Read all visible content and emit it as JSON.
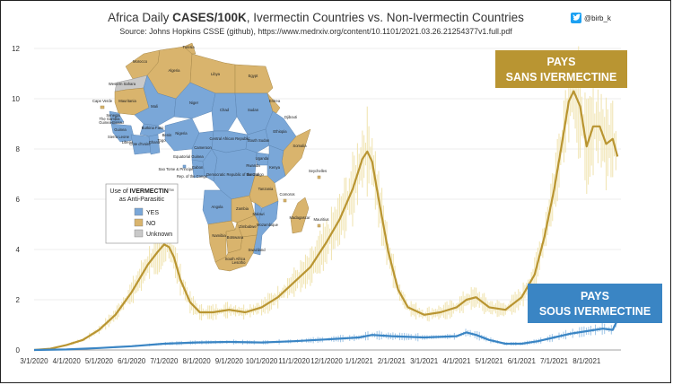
{
  "colors": {
    "ivermectin": "#3a85c4",
    "no_ivermectin": "#b99532",
    "no_ivermectin_raw": "#f1e5b4",
    "ivermectin_raw": "#9ec4e6",
    "map_yes": "#7aa7d8",
    "map_no": "#d9b46d",
    "map_unknown": "#c9c9c9",
    "twitter": "#1da1f2"
  },
  "twitter": {
    "icon": "twitter-bird-icon",
    "handle": "@birb_k"
  },
  "chart_data": {
    "type": "line",
    "title_prefix": "Africa Daily ",
    "title_bold": "CASES/100K",
    "title_suffix": ", Ivermectin Countries vs. Non-Ivermectin Countries",
    "subtitle": "Source: Johns Hopkins CSSE (github), https://www.medrxiv.org/content/10.1101/2021.03.26.21254377v1.full.pdf",
    "ylim": [
      0,
      12
    ],
    "yticks": [
      0,
      2,
      4,
      6,
      8,
      10,
      12
    ],
    "x_months": [
      "3/1/2020",
      "4/1/2020",
      "5/1/2020",
      "6/1/2020",
      "7/1/2020",
      "8/1/2020",
      "9/1/2020",
      "10/1/2020",
      "11/1/2020",
      "12/1/2020",
      "1/1/2021",
      "2/1/2021",
      "3/1/2021",
      "4/1/2021",
      "5/1/2021",
      "6/1/2021",
      "7/1/2021",
      "8/1/2021"
    ],
    "x_range_months": [
      0,
      18
    ],
    "series": [
      {
        "name": "PAYS SANS IVERMECTINE",
        "x": [
          0,
          0.5,
          1,
          1.5,
          2,
          2.5,
          3,
          3.5,
          3.8,
          4.0,
          4.15,
          4.3,
          4.5,
          4.8,
          5.1,
          5.5,
          6,
          6.5,
          7,
          7.5,
          8,
          8.5,
          9,
          9.4,
          9.8,
          10.1,
          10.25,
          10.4,
          10.6,
          10.9,
          11.2,
          11.5,
          12,
          12.5,
          13,
          13.3,
          13.6,
          14,
          14.5,
          15,
          15.4,
          15.7,
          16,
          16.25,
          16.45,
          16.6,
          16.8,
          17,
          17.2,
          17.4,
          17.6,
          17.8,
          17.95
        ],
        "values": [
          0,
          0.05,
          0.2,
          0.4,
          0.8,
          1.4,
          2.3,
          3.4,
          3.9,
          4.2,
          4.1,
          3.7,
          2.8,
          1.9,
          1.5,
          1.5,
          1.6,
          1.5,
          1.7,
          2.1,
          2.7,
          3.3,
          4.3,
          5.2,
          6.4,
          7.6,
          7.9,
          7.5,
          6.0,
          3.9,
          2.4,
          1.7,
          1.4,
          1.5,
          1.7,
          2.0,
          2.1,
          1.7,
          1.6,
          2.1,
          3.0,
          4.5,
          6.4,
          8.3,
          9.9,
          10.3,
          9.7,
          8.1,
          8.9,
          8.9,
          8.2,
          8.4,
          7.7
        ]
      },
      {
        "name": "PAYS SOUS IVERMECTINE",
        "x": [
          0,
          1,
          2,
          3,
          4,
          5,
          6,
          7,
          8,
          9,
          10,
          10.4,
          11,
          12,
          13,
          13.3,
          13.6,
          14,
          14.5,
          15,
          15.5,
          16,
          16.5,
          17,
          17.5,
          17.8,
          17.95
        ],
        "values": [
          0,
          0.02,
          0.08,
          0.15,
          0.25,
          0.3,
          0.32,
          0.3,
          0.35,
          0.42,
          0.5,
          0.6,
          0.55,
          0.5,
          0.55,
          0.7,
          0.6,
          0.4,
          0.25,
          0.25,
          0.35,
          0.5,
          0.65,
          0.75,
          0.85,
          0.8,
          1.2
        ]
      }
    ],
    "annotations": [
      {
        "line1": "PAYS",
        "line2": "SANS IVERMECTINE",
        "series": "PAYS SANS IVERMECTINE"
      },
      {
        "line1": "PAYS",
        "line2": "SOUS IVERMECTINE",
        "series": "PAYS SOUS IVERMECTINE"
      }
    ]
  },
  "map": {
    "legend": {
      "title_prefix": "Use of ",
      "title_bold": "IVERMECTIN",
      "title_tm": "TM",
      "title_line2": "as Anti-Parasitic",
      "items": [
        {
          "label": "YES",
          "color_key": "map_yes"
        },
        {
          "label": "NO",
          "color_key": "map_no"
        },
        {
          "label": "Unknown",
          "color_key": "map_unknown"
        }
      ]
    },
    "countries": [
      "Tunisia",
      "Morocco",
      "Algeria",
      "Libya",
      "Egypt",
      "Western Sahara",
      "Mauritania",
      "Mali",
      "Niger",
      "Chad",
      "Sudan",
      "Eritrea",
      "Cape Verde",
      "Senegal",
      "The Gambia",
      "Guinea-Bissau",
      "Guinea",
      "Sierra Leone",
      "Liberia",
      "Cote d'Ivoire",
      "Burkina Faso",
      "Ghana",
      "Togo",
      "Benin",
      "Nigeria",
      "Cameroon",
      "Central African Republic",
      "South Sudan",
      "Ethiopia",
      "Djibouti",
      "Somalia",
      "Equatorial Guinea",
      "Sao Tome & Principe",
      "Gabon",
      "Rep. of the Congo",
      "Democratic Republic of the Congo",
      "Uganda",
      "Kenya",
      "Rwanda",
      "Burundi",
      "Tanzania",
      "Seychelles",
      "Comoros",
      "Angola",
      "Zambia",
      "Malawi",
      "Mozambique",
      "Madagascar",
      "Mauritius",
      "Namibia",
      "Botswana",
      "Zimbabwe",
      "South Africa",
      "Lesotho",
      "Swaziland"
    ]
  }
}
